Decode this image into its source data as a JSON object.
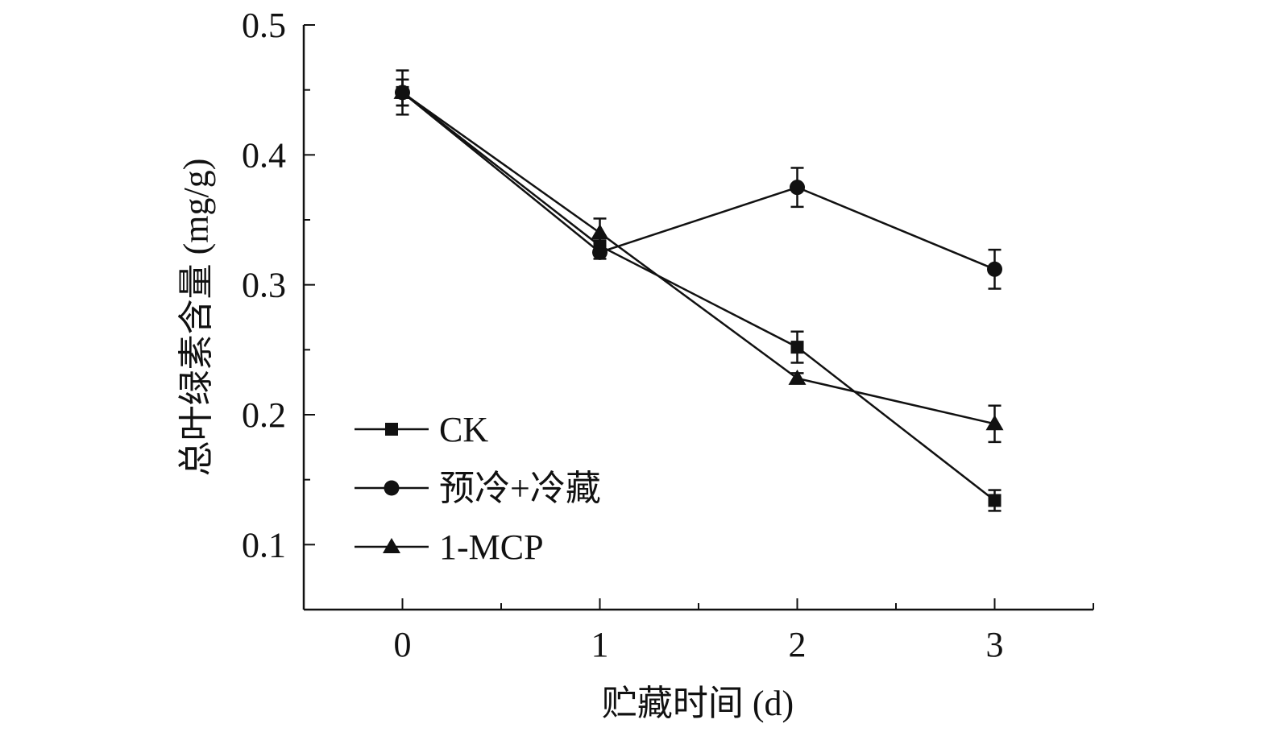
{
  "chart_data": {
    "type": "line",
    "title": "",
    "xlabel": "贮藏时间 (d)",
    "ylabel": "总叶绿素含量 (mg/g)",
    "x": [
      0,
      1,
      2,
      3
    ],
    "xlim": [
      -0.5,
      3.5
    ],
    "ylim": [
      0.05,
      0.5
    ],
    "xticks": [
      "0",
      "1",
      "2",
      "3"
    ],
    "yticks": [
      "0.1",
      "0.2",
      "0.3",
      "0.4",
      "0.5"
    ],
    "ytick_values": [
      0.1,
      0.2,
      0.3,
      0.4,
      0.5
    ],
    "grid": false,
    "legend_position": "bottom-left",
    "series": [
      {
        "name": "CK",
        "marker": "square",
        "values": [
          0.448,
          0.33,
          0.252,
          0.134
        ],
        "errors": [
          0.01,
          0.006,
          0.012,
          0.008
        ]
      },
      {
        "name": "预冷+冷藏",
        "marker": "circle",
        "values": [
          0.448,
          0.325,
          0.375,
          0.312
        ],
        "errors": [
          0.017,
          0.005,
          0.015,
          0.015
        ]
      },
      {
        "name": "1-MCP",
        "marker": "triangle",
        "values": [
          0.448,
          0.34,
          0.228,
          0.193
        ],
        "errors": [
          0.01,
          0.011,
          0.004,
          0.014
        ]
      }
    ],
    "color": "#111111"
  }
}
